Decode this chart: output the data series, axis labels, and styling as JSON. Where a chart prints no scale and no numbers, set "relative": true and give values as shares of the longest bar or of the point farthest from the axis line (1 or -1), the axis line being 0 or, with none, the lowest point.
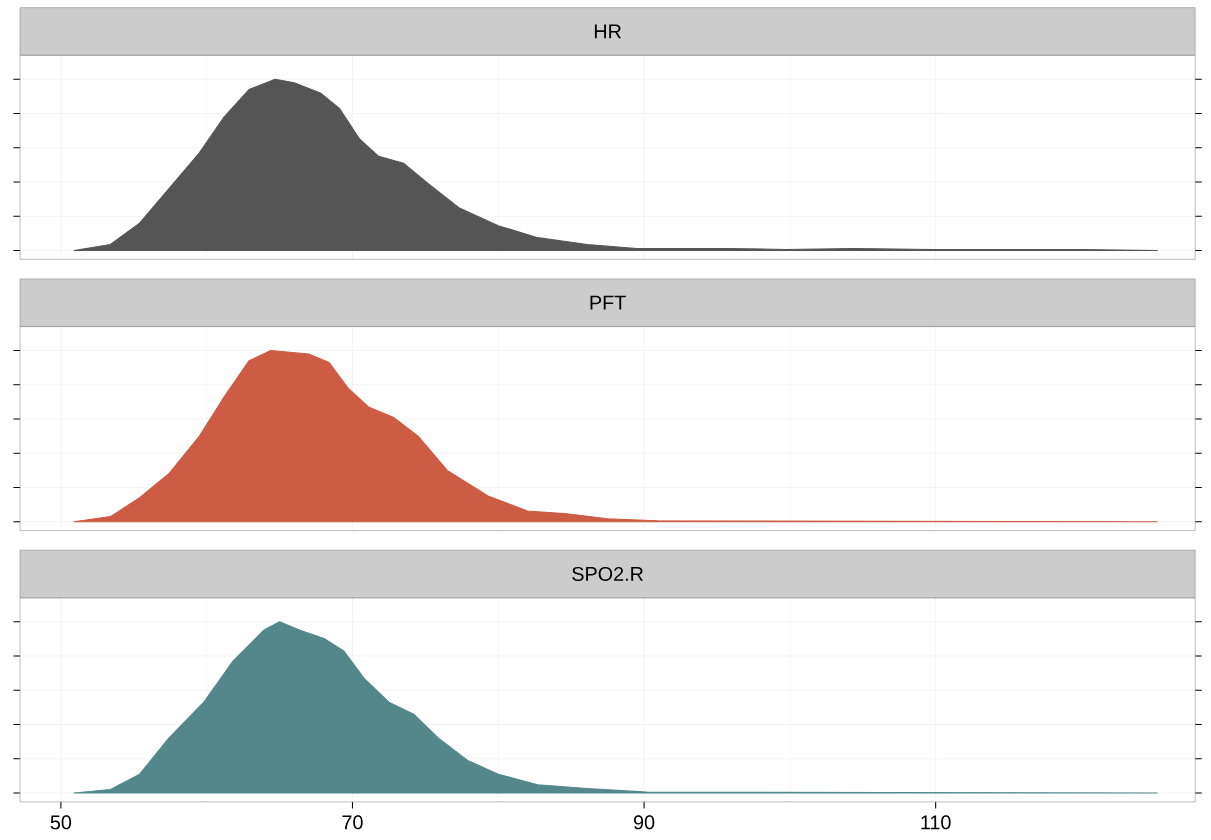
{
  "chart_data": [
    {
      "type": "area",
      "title": "HR",
      "color": "#555555",
      "relative": true,
      "grid": true,
      "tick_labels": false,
      "xlim": [
        47.2,
        127.8
      ],
      "xticks": [
        50,
        70,
        90,
        110
      ],
      "x": [
        50.9,
        53.4,
        55.4,
        57.4,
        59.5,
        61.2,
        62.9,
        64.7,
        66.0,
        67.8,
        69.1,
        70.5,
        71.8,
        73.5,
        75.2,
        77.3,
        80.0,
        82.7,
        86.1,
        89.5,
        93.0,
        95.6,
        99.7,
        104.4,
        109.8,
        114.6,
        120.0,
        125.2
      ],
      "values": [
        0,
        0.035,
        0.16,
        0.36,
        0.57,
        0.78,
        0.94,
        1.0,
        0.98,
        0.92,
        0.83,
        0.65,
        0.55,
        0.51,
        0.39,
        0.25,
        0.145,
        0.075,
        0.035,
        0.012,
        0.012,
        0.012,
        0.006,
        0.012,
        0.006,
        0.006,
        0.006,
        0
      ]
    },
    {
      "type": "area",
      "title": "PFT",
      "color": "#cd5c45",
      "relative": true,
      "grid": true,
      "tick_labels": false,
      "xlim": [
        47.2,
        127.8
      ],
      "xticks": [
        50,
        70,
        90,
        110
      ],
      "x": [
        50.9,
        53.4,
        55.4,
        57.4,
        59.5,
        61.2,
        62.9,
        64.4,
        67.0,
        68.4,
        69.7,
        71.1,
        72.8,
        74.5,
        76.5,
        79.3,
        82.0,
        84.7,
        87.5,
        90.9,
        125.2
      ],
      "values": [
        0,
        0.03,
        0.14,
        0.28,
        0.5,
        0.73,
        0.94,
        1.0,
        0.98,
        0.93,
        0.78,
        0.67,
        0.61,
        0.5,
        0.3,
        0.15,
        0.063,
        0.046,
        0.017,
        0.006,
        0
      ]
    },
    {
      "type": "area",
      "title": "SPO2.R",
      "color": "#53878a",
      "relative": true,
      "grid": true,
      "tick_labels": "x",
      "xlim": [
        47.2,
        127.8
      ],
      "xticks": [
        50,
        70,
        90,
        110
      ],
      "x": [
        50.9,
        53.4,
        55.4,
        57.4,
        59.8,
        61.8,
        63.9,
        65.0,
        66.4,
        68.1,
        69.4,
        70.8,
        72.5,
        74.2,
        75.9,
        77.9,
        80.0,
        82.7,
        86.1,
        90.2,
        125.2
      ],
      "values": [
        0,
        0.02,
        0.11,
        0.32,
        0.53,
        0.77,
        0.95,
        1.0,
        0.95,
        0.9,
        0.83,
        0.67,
        0.53,
        0.46,
        0.32,
        0.19,
        0.11,
        0.048,
        0.026,
        0.005,
        0
      ]
    }
  ]
}
